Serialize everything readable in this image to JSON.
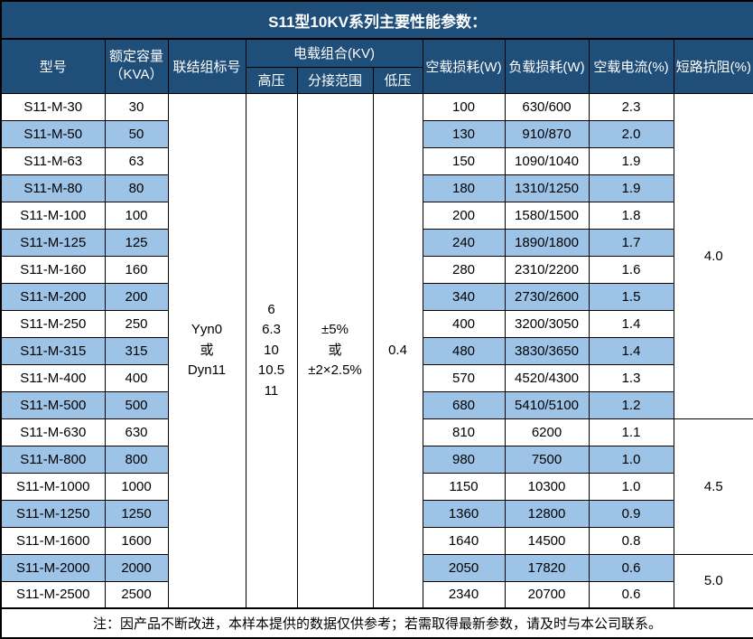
{
  "title": "S11型10KV系列主要性能参数：",
  "colors": {
    "header_bg": "#1F4E79",
    "alt_row_bg": "#9DC3E6",
    "row_bg": "#FFFFFF",
    "border": "#000000",
    "header_text": "#FFFFFF",
    "body_text": "#000000"
  },
  "header": {
    "model": "型号",
    "capacity_line1": "额定容量",
    "capacity_line2": "（KVA）",
    "connection": "联结组标号",
    "load_combo": "电载组合(KV)",
    "hv": "高压",
    "tap_range": "分接范围",
    "lv": "低压",
    "no_load_loss": "空载损耗(W)",
    "load_loss": "负载损耗(W)",
    "no_load_current": "空载电流(%)",
    "impedance": "短路抗阻(%)"
  },
  "merged": {
    "connection": "Yyn0\n或\nDyn11",
    "hv": "6\n6.3\n10\n10.5\n11",
    "tap_range": "±5%\n或\n±2×2.5%",
    "lv": "0.4"
  },
  "impedance_groups": [
    {
      "value": "4.0",
      "rows": 12
    },
    {
      "value": "4.5",
      "rows": 5
    },
    {
      "value": "5.0",
      "rows": 2
    }
  ],
  "rows": [
    {
      "model": "S11-M-30",
      "kva": "30",
      "no_load_loss": "100",
      "load_loss": "630/600",
      "no_load_current": "2.3"
    },
    {
      "model": "S11-M-50",
      "kva": "50",
      "no_load_loss": "130",
      "load_loss": "910/870",
      "no_load_current": "2.0"
    },
    {
      "model": "S11-M-63",
      "kva": "63",
      "no_load_loss": "150",
      "load_loss": "1090/1040",
      "no_load_current": "1.9"
    },
    {
      "model": "S11-M-80",
      "kva": "80",
      "no_load_loss": "180",
      "load_loss": "1310/1250",
      "no_load_current": "1.9"
    },
    {
      "model": "S11-M-100",
      "kva": "100",
      "no_load_loss": "200",
      "load_loss": "1580/1500",
      "no_load_current": "1.8"
    },
    {
      "model": "S11-M-125",
      "kva": "125",
      "no_load_loss": "240",
      "load_loss": "1890/1800",
      "no_load_current": "1.7"
    },
    {
      "model": "S11-M-160",
      "kva": "160",
      "no_load_loss": "280",
      "load_loss": "2310/2200",
      "no_load_current": "1.6"
    },
    {
      "model": "S11-M-200",
      "kva": "200",
      "no_load_loss": "340",
      "load_loss": "2730/2600",
      "no_load_current": "1.5"
    },
    {
      "model": "S11-M-250",
      "kva": "250",
      "no_load_loss": "400",
      "load_loss": "3200/3050",
      "no_load_current": "1.4"
    },
    {
      "model": "S11-M-315",
      "kva": "315",
      "no_load_loss": "480",
      "load_loss": "3830/3650",
      "no_load_current": "1.4"
    },
    {
      "model": "S11-M-400",
      "kva": "400",
      "no_load_loss": "570",
      "load_loss": "4520/4300",
      "no_load_current": "1.3"
    },
    {
      "model": "S11-M-500",
      "kva": "500",
      "no_load_loss": "680",
      "load_loss": "5410/5100",
      "no_load_current": "1.2"
    },
    {
      "model": "S11-M-630",
      "kva": "630",
      "no_load_loss": "810",
      "load_loss": "6200",
      "no_load_current": "1.1"
    },
    {
      "model": "S11-M-800",
      "kva": "800",
      "no_load_loss": "980",
      "load_loss": "7500",
      "no_load_current": "1.0"
    },
    {
      "model": "S11-M-1000",
      "kva": "1000",
      "no_load_loss": "1150",
      "load_loss": "10300",
      "no_load_current": "1.0"
    },
    {
      "model": "S11-M-1250",
      "kva": "1250",
      "no_load_loss": "1360",
      "load_loss": "12800",
      "no_load_current": "0.9"
    },
    {
      "model": "S11-M-1600",
      "kva": "1600",
      "no_load_loss": "1640",
      "load_loss": "14500",
      "no_load_current": "0.8"
    },
    {
      "model": "S11-M-2000",
      "kva": "2000",
      "no_load_loss": "2050",
      "load_loss": "17820",
      "no_load_current": "0.6"
    },
    {
      "model": "S11-M-2500",
      "kva": "2500",
      "no_load_loss": "2340",
      "load_loss": "20700",
      "no_load_current": "0.6"
    }
  ],
  "note": "注：因产品不断改进，本样本提供的数据仅供参考；若需取得最新参数，请及时与本公司联系。"
}
